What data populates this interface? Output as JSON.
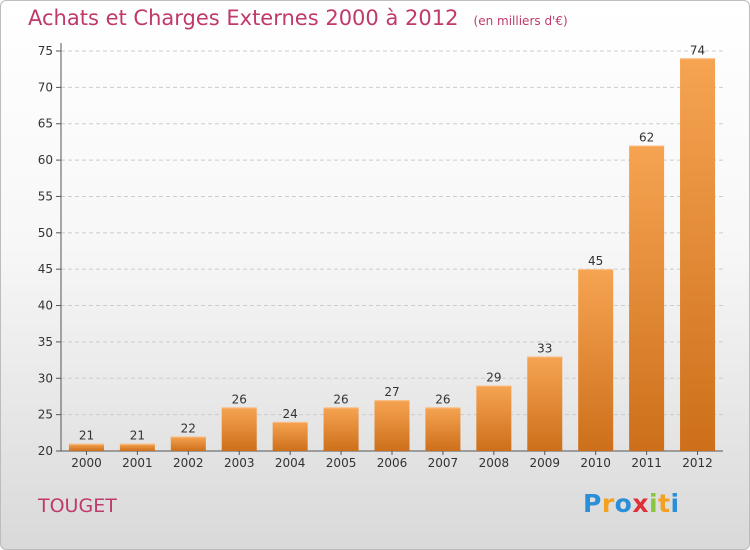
{
  "title": "Achats et Charges Externes 2000 à 2012",
  "unit_note": "(en milliers d'€)",
  "commune": "TOUGET",
  "logo": {
    "letters": [
      "P",
      "r",
      "o",
      "x",
      "i",
      "t",
      "i"
    ],
    "colors": [
      "#2a8fd8",
      "#f4a020",
      "#2a8fd8",
      "#e0303a",
      "#8bc53f",
      "#f4a020",
      "#2a8fd8"
    ]
  },
  "colors": {
    "bar": "#f19a45",
    "bar_dark": "#d2741e",
    "title": "#c0396b",
    "grid": "#cccccc"
  },
  "chart_data": {
    "type": "bar",
    "categories": [
      "2000",
      "2001",
      "2002",
      "2003",
      "2004",
      "2005",
      "2006",
      "2007",
      "2008",
      "2009",
      "2010",
      "2011",
      "2012"
    ],
    "values": [
      21,
      21,
      22,
      26,
      24,
      26,
      27,
      26,
      29,
      33,
      45,
      62,
      74
    ],
    "ylim": [
      20,
      75
    ],
    "yticks": [
      20,
      25,
      30,
      35,
      40,
      45,
      50,
      55,
      60,
      65,
      70,
      75
    ],
    "grid": true
  }
}
